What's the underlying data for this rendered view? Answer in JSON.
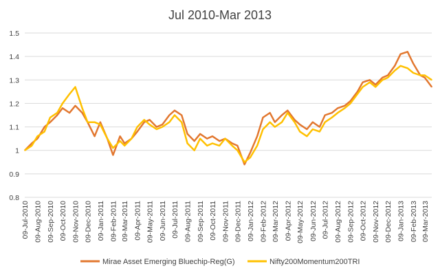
{
  "chart_data": {
    "type": "line",
    "title": "Jul 2010-Mar 2013",
    "xlabel": "",
    "ylabel": "",
    "ylim": [
      0.8,
      1.5
    ],
    "yticks": [
      "0.8",
      "0.9",
      "1",
      "1.1",
      "1.2",
      "1.3",
      "1.4",
      "1.5"
    ],
    "xticks": [
      "09-Jul-2010",
      "09-Aug-2010",
      "09-Sep-2010",
      "09-Oct-2010",
      "09-Nov-2010",
      "09-Dec-2010",
      "09-Jan-2011",
      "09-Feb-2011",
      "09-Mar-2011",
      "09-Apr-2011",
      "09-May-2011",
      "09-Jun-2011",
      "09-Jul-2011",
      "09-Aug-2011",
      "09-Sep-2011",
      "09-Oct-2011",
      "09-Nov-2011",
      "09-Dec-2011",
      "09-Jan-2012",
      "09-Feb-2012",
      "09-Mar-2012",
      "09-Apr-2012",
      "09-May-2012",
      "09-Jun-2012",
      "09-Jul-2012",
      "09-Aug-2012",
      "09-Sep-2012",
      "09-Oct-2012",
      "09-Nov-2012",
      "09-Dec-2012",
      "09-Jan-2013",
      "09-Feb-2013",
      "09-Mar-2013"
    ],
    "grid": true,
    "legend_position": "bottom",
    "x_dates": [
      "2010-07-09",
      "2010-07-26",
      "2010-08-09",
      "2010-08-26",
      "2010-09-09",
      "2010-09-26",
      "2010-10-09",
      "2010-10-26",
      "2010-11-09",
      "2010-11-26",
      "2010-12-09",
      "2010-12-26",
      "2011-01-09",
      "2011-01-26",
      "2011-02-09",
      "2011-02-26",
      "2011-03-09",
      "2011-03-26",
      "2011-04-09",
      "2011-04-26",
      "2011-05-09",
      "2011-05-26",
      "2011-06-09",
      "2011-06-26",
      "2011-07-09",
      "2011-07-26",
      "2011-08-09",
      "2011-08-26",
      "2011-09-09",
      "2011-09-26",
      "2011-10-09",
      "2011-10-26",
      "2011-11-09",
      "2011-11-26",
      "2011-12-09",
      "2011-12-26",
      "2012-01-09",
      "2012-01-26",
      "2012-02-09",
      "2012-02-26",
      "2012-03-09",
      "2012-03-26",
      "2012-04-09",
      "2012-04-26",
      "2012-05-09",
      "2012-05-26",
      "2012-06-09",
      "2012-06-26",
      "2012-07-09",
      "2012-07-26",
      "2012-08-09",
      "2012-08-26",
      "2012-09-09",
      "2012-09-26",
      "2012-10-09",
      "2012-10-26",
      "2012-11-09",
      "2012-11-26",
      "2012-12-09",
      "2012-12-26",
      "2013-01-09",
      "2013-01-26",
      "2013-02-09",
      "2013-02-26",
      "2013-03-09",
      "2013-03-26"
    ],
    "series": [
      {
        "name": "Mirae Asset Emerging Bluechip-Reg(G)",
        "color": "#E2772F",
        "values": [
          1.0,
          1.03,
          1.05,
          1.1,
          1.12,
          1.15,
          1.18,
          1.16,
          1.19,
          1.16,
          1.12,
          1.06,
          1.12,
          1.05,
          0.98,
          1.06,
          1.03,
          1.05,
          1.08,
          1.12,
          1.13,
          1.1,
          1.11,
          1.15,
          1.17,
          1.15,
          1.07,
          1.04,
          1.07,
          1.05,
          1.06,
          1.04,
          1.05,
          1.03,
          1.02,
          0.94,
          0.99,
          1.06,
          1.14,
          1.16,
          1.12,
          1.15,
          1.17,
          1.13,
          1.11,
          1.09,
          1.12,
          1.1,
          1.15,
          1.16,
          1.18,
          1.19,
          1.21,
          1.25,
          1.29,
          1.3,
          1.28,
          1.31,
          1.32,
          1.36,
          1.41,
          1.42,
          1.37,
          1.32,
          1.31,
          1.27
        ]
      },
      {
        "name": "Nifty200Momentum200TRI",
        "color": "#FFC000",
        "values": [
          1.0,
          1.02,
          1.06,
          1.08,
          1.14,
          1.16,
          1.2,
          1.24,
          1.27,
          1.18,
          1.12,
          1.12,
          1.11,
          1.05,
          1.01,
          1.04,
          1.02,
          1.05,
          1.1,
          1.13,
          1.11,
          1.09,
          1.1,
          1.12,
          1.15,
          1.12,
          1.03,
          1.0,
          1.05,
          1.02,
          1.03,
          1.02,
          1.05,
          1.02,
          1.0,
          0.95,
          0.97,
          1.02,
          1.09,
          1.12,
          1.1,
          1.12,
          1.16,
          1.12,
          1.08,
          1.06,
          1.09,
          1.08,
          1.12,
          1.14,
          1.16,
          1.18,
          1.2,
          1.24,
          1.27,
          1.29,
          1.27,
          1.3,
          1.31,
          1.34,
          1.36,
          1.35,
          1.33,
          1.32,
          1.32,
          1.3
        ]
      }
    ]
  }
}
